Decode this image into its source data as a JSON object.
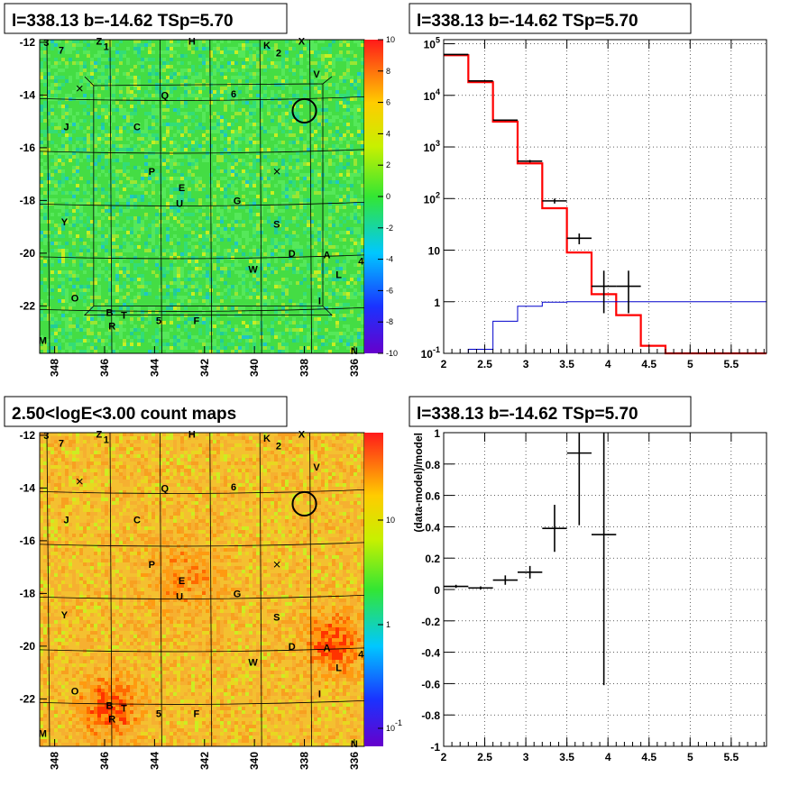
{
  "chart_data": [
    {
      "type": "heatmap",
      "title": "l=338.13 b=-14.62 TSp=5.70",
      "x_ticks": [
        "348",
        "346",
        "344",
        "342",
        "340",
        "338",
        "336"
      ],
      "y_ticks": [
        "-12",
        "-14",
        "-16",
        "-18",
        "-20",
        "-22"
      ],
      "xlim": [
        348.6,
        335.6
      ],
      "ylim": [
        -23.8,
        -11.9
      ],
      "colorbar": {
        "min": -10,
        "max": 10,
        "ticks": [
          "10",
          "8",
          "6",
          "4",
          "2",
          "0",
          "-2",
          "-4",
          "-6",
          "-8",
          "-10"
        ],
        "scale": "linear",
        "palette": "rainbow",
        "dominant_color": "#44dd44"
      },
      "circle": {
        "l": 338.0,
        "b": -14.6,
        "r": 0.45
      },
      "crosses": [
        {
          "l": 347.0,
          "b": -13.75
        },
        {
          "l": 339.1,
          "b": -16.9
        }
      ],
      "markers": [
        {
          "t": "3",
          "l": 348.3,
          "b": -12.0
        },
        {
          "t": "7",
          "l": 347.7,
          "b": -12.3
        },
        {
          "t": "Z",
          "l": 346.2,
          "b": -11.95
        },
        {
          "t": "1",
          "l": 345.9,
          "b": -12.15
        },
        {
          "t": "H",
          "l": 342.5,
          "b": -11.95
        },
        {
          "t": "K",
          "l": 339.5,
          "b": -12.1
        },
        {
          "t": "2",
          "l": 339.0,
          "b": -12.4
        },
        {
          "t": "X",
          "l": 338.1,
          "b": -11.95
        },
        {
          "t": "V",
          "l": 337.5,
          "b": -13.2
        },
        {
          "t": "Q",
          "l": 343.6,
          "b": -14.0
        },
        {
          "t": "6",
          "l": 340.8,
          "b": -13.95
        },
        {
          "t": "J",
          "l": 347.5,
          "b": -15.2
        },
        {
          "t": "C",
          "l": 344.7,
          "b": -15.2
        },
        {
          "t": "P",
          "l": 344.1,
          "b": -16.9
        },
        {
          "t": "E",
          "l": 342.9,
          "b": -17.5
        },
        {
          "t": "U",
          "l": 343.0,
          "b": -18.1
        },
        {
          "t": "G",
          "l": 340.7,
          "b": -18.0
        },
        {
          "t": "Y",
          "l": 347.6,
          "b": -18.8
        },
        {
          "t": "S",
          "l": 339.1,
          "b": -18.9
        },
        {
          "t": "D",
          "l": 338.5,
          "b": -20.0
        },
        {
          "t": "A",
          "l": 337.1,
          "b": -20.05
        },
        {
          "t": "4",
          "l": 335.7,
          "b": -20.3
        },
        {
          "t": "W",
          "l": 340.1,
          "b": -20.6
        },
        {
          "t": "L",
          "l": 336.6,
          "b": -20.8
        },
        {
          "t": "O",
          "l": 347.2,
          "b": -21.7
        },
        {
          "t": "I",
          "l": 337.3,
          "b": -21.8
        },
        {
          "t": "B",
          "l": 345.8,
          "b": -22.25
        },
        {
          "t": "T",
          "l": 345.2,
          "b": -22.35
        },
        {
          "t": "R",
          "l": 345.7,
          "b": -22.75
        },
        {
          "t": "5",
          "l": 343.8,
          "b": -22.55
        },
        {
          "t": "F",
          "l": 342.3,
          "b": -22.55
        },
        {
          "t": "M",
          "l": 348.5,
          "b": -23.3
        },
        {
          "t": "N",
          "l": 336.0,
          "b": -23.7
        }
      ]
    },
    {
      "type": "line",
      "title": "l=338.13 b=-14.62 TSp=5.70",
      "x_ticks": [
        "2",
        "2.5",
        "3",
        "3.5",
        "4",
        "4.5",
        "5",
        "5.5"
      ],
      "y_ticks": [
        "10^5",
        "10^4",
        "10^3",
        "10^2",
        "10",
        "1",
        "10^-1"
      ],
      "xlim": [
        2.0,
        5.93
      ],
      "ylim": [
        0.1,
        120000
      ],
      "y_scale": "log",
      "grid": true,
      "edges": [
        2.0,
        2.3,
        2.6,
        2.9,
        3.2,
        3.5,
        3.8,
        4.1,
        4.4,
        4.7,
        5.0,
        5.93
      ],
      "series": [
        {
          "color": "#ff0000",
          "step": true,
          "values": [
            60000,
            18000,
            3100,
            480,
            65,
            9,
            1.4,
            0.55,
            0.14,
            0.1,
            0.1
          ]
        },
        {
          "color": "#0000cc",
          "step": true,
          "values": [
            0.1,
            0.12,
            0.42,
            0.82,
            0.98,
            1.0,
            1.0,
            1.0,
            1.0,
            1.0,
            1.0
          ]
        },
        {
          "color": "#000000",
          "errorbars": true,
          "points": [
            {
              "x": 2.15,
              "xerr": 0.15,
              "y": 62000,
              "ylo": 61000,
              "yhi": 63000
            },
            {
              "x": 2.45,
              "xerr": 0.15,
              "y": 19000,
              "ylo": 18600,
              "yhi": 19400
            },
            {
              "x": 2.75,
              "xerr": 0.15,
              "y": 3300,
              "ylo": 3200,
              "yhi": 3400
            },
            {
              "x": 3.05,
              "xerr": 0.15,
              "y": 530,
              "ylo": 500,
              "yhi": 560
            },
            {
              "x": 3.35,
              "xerr": 0.15,
              "y": 90,
              "ylo": 80,
              "yhi": 100
            },
            {
              "x": 3.65,
              "xerr": 0.15,
              "y": 17,
              "ylo": 13,
              "yhi": 21
            },
            {
              "x": 3.95,
              "xerr": 0.15,
              "y": 2,
              "ylo": 0.6,
              "yhi": 4
            },
            {
              "x": 4.25,
              "xerr": 0.15,
              "y": 2,
              "ylo": 0.6,
              "yhi": 4
            }
          ]
        }
      ]
    },
    {
      "type": "heatmap",
      "title": "2.50<logE<3.00 count maps",
      "x_ticks": [
        "348",
        "346",
        "344",
        "342",
        "340",
        "338",
        "336"
      ],
      "y_ticks": [
        "-12",
        "-14",
        "-16",
        "-18",
        "-20",
        "-22"
      ],
      "xlim": [
        348.6,
        335.6
      ],
      "ylim": [
        -23.8,
        -11.9
      ],
      "colorbar": {
        "scale": "log",
        "ticks": [
          "10",
          "1",
          "10^-1"
        ],
        "palette": "rainbow",
        "dominant_color": "#f0c030"
      },
      "circle": {
        "l": 338.0,
        "b": -14.6,
        "r": 0.45
      },
      "crosses": [
        {
          "l": 347.0,
          "b": -13.75
        },
        {
          "l": 339.1,
          "b": -16.9
        }
      ],
      "hotspots": [
        {
          "l": 336.8,
          "b": -19.9
        },
        {
          "l": 345.8,
          "b": -22.3
        },
        {
          "l": 342.8,
          "b": -17.5
        }
      ]
    },
    {
      "type": "scatter",
      "title": "l=338.13 b=-14.62 TSp=5.70",
      "ylabel": "(data-model)/model",
      "x_ticks": [
        "2",
        "2.5",
        "3",
        "3.5",
        "4",
        "4.5",
        "5",
        "5.5"
      ],
      "y_ticks": [
        "1",
        "0.8",
        "0.6",
        "0.4",
        "0.2",
        "0",
        "-0.2",
        "-0.4",
        "-0.6",
        "-0.8",
        "-1"
      ],
      "xlim": [
        2.0,
        5.93
      ],
      "ylim": [
        -1,
        1
      ],
      "grid": true,
      "points": [
        {
          "x": 2.15,
          "xerr": 0.15,
          "y": 0.02,
          "ylo": 0.01,
          "yhi": 0.03
        },
        {
          "x": 2.45,
          "xerr": 0.15,
          "y": 0.01,
          "ylo": 0.0,
          "yhi": 0.02
        },
        {
          "x": 2.75,
          "xerr": 0.15,
          "y": 0.06,
          "ylo": 0.03,
          "yhi": 0.09
        },
        {
          "x": 3.05,
          "xerr": 0.15,
          "y": 0.11,
          "ylo": 0.07,
          "yhi": 0.15
        },
        {
          "x": 3.35,
          "xerr": 0.15,
          "y": 0.39,
          "ylo": 0.24,
          "yhi": 0.54
        },
        {
          "x": 3.65,
          "xerr": 0.15,
          "y": 0.87,
          "ylo": 0.41,
          "yhi": 1.0
        },
        {
          "x": 3.95,
          "xerr": 0.15,
          "y": 0.35,
          "ylo": -0.61,
          "yhi": 1.0
        }
      ]
    }
  ]
}
